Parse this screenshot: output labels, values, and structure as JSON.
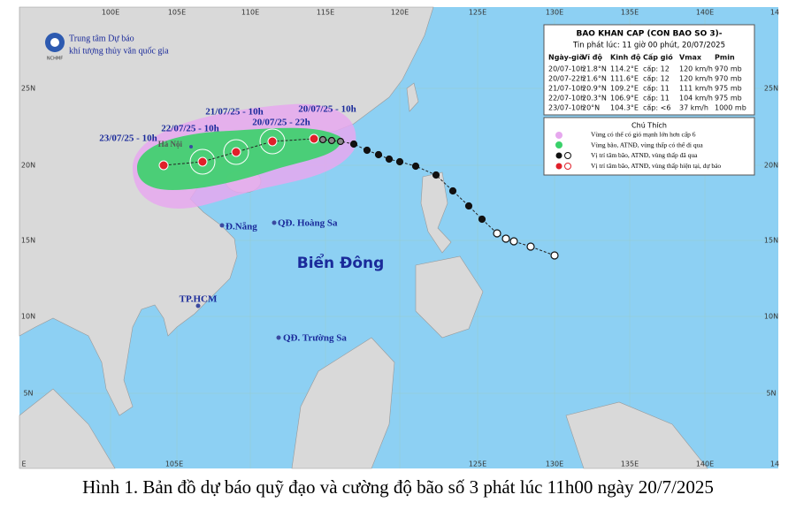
{
  "map": {
    "lon_top": [
      "100E",
      "105E",
      "110E",
      "115E",
      "120E",
      "125E",
      "130E",
      "135E",
      "140E",
      "14"
    ],
    "lon_bottom": [
      "E",
      "105E",
      "125E",
      "130E",
      "135E",
      "140E",
      "14"
    ],
    "lat_left": [
      "25N",
      "20N",
      "15N",
      "10N",
      "5N"
    ],
    "lat_right": [
      "25N",
      "20N",
      "15N",
      "10N",
      "5N"
    ]
  },
  "logo": {
    "line1": "Trung tâm Dự báo",
    "line2": "khí tượng thủy văn quốc gia",
    "abbr": "NCHMF"
  },
  "bulletin": {
    "title": "BAO KHAN CAP (CON BAO SO 3)-",
    "issued": "Tin phát lúc: 11 giờ 00 phút, 20/07/2025",
    "columns": [
      "Ngày-giờ",
      "Vĩ độ",
      "Kinh độ",
      "Cấp gió",
      "Vmax",
      "Pmin"
    ],
    "rows": [
      [
        "20/07-10h",
        "21.8°N",
        "114.2°E",
        "cấp: 12",
        "120 km/h",
        "970 mb"
      ],
      [
        "20/07-22h",
        "21.6°N",
        "111.6°E",
        "cấp: 12",
        "120 km/h",
        "970 mb"
      ],
      [
        "21/07-10h",
        "20.9°N",
        "109.2°E",
        "cấp: 11",
        "111 km/h",
        "975 mb"
      ],
      [
        "22/07-10h",
        "20.3°N",
        "106.9°E",
        "cấp: 11",
        "104 km/h",
        "975 mb"
      ],
      [
        "23/07-10h",
        "20°N",
        "104.3°E",
        "cấp: <6",
        "37 km/h",
        "1000 mb"
      ]
    ]
  },
  "legend": {
    "title": "Chú Thích",
    "items": [
      "Vùng có thể có gió mạnh lớn hơn cấp 6",
      "Vùng bão, ATNĐ, vùng thấp có thể đi qua",
      "Vị trí tâm bão, ATNĐ, vùng thấp đã qua",
      "Vị trí tâm bão, ATNĐ, vùng thấp hiện tại, dự báo"
    ]
  },
  "forecast_labels": [
    "20/07/25 - 10h",
    "21/07/25 - 10h",
    "20/07/25 - 22h",
    "22/07/25 - 10h",
    "23/07/25 - 10h"
  ],
  "places": [
    "Hà Nội",
    "Đ.Nẵng",
    "QĐ. Hoàng Sa",
    "TP.HCM",
    "QĐ. Trường Sa"
  ],
  "sea_label": "Biển Đông",
  "caption": "Hình 1. Bản đồ dự báo quỹ đạo và cường độ bão số 3 phát lúc 11h00 ngày 20/7/2025"
}
